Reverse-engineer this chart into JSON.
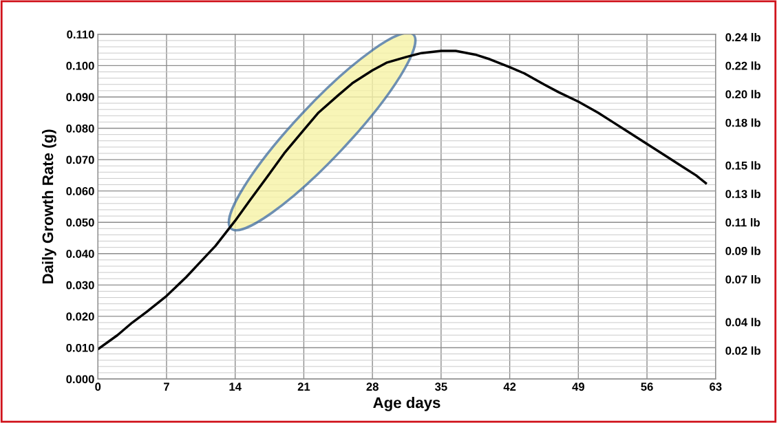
{
  "chart_data": {
    "type": "line",
    "xlabel": "Age days",
    "ylabel": "Daily Growth Rate (g)",
    "x": [
      0,
      2,
      3.5,
      5,
      7,
      9,
      10.5,
      12,
      13,
      14,
      15.5,
      17.5,
      19,
      21,
      22.5,
      24.5,
      26,
      28,
      29.5,
      31.5,
      33,
      35,
      36.5,
      38.5,
      40,
      42,
      43.5,
      45.5,
      47,
      49,
      51,
      52.5,
      54,
      56,
      58,
      59.5,
      61,
      62
    ],
    "series": [
      {
        "color": "#000000",
        "values": [
          0.0095,
          0.014,
          0.018,
          0.0215,
          0.0265,
          0.0325,
          0.0375,
          0.0425,
          0.0465,
          0.0505,
          0.057,
          0.0655,
          0.072,
          0.0795,
          0.085,
          0.0905,
          0.0945,
          0.0985,
          0.101,
          0.1028,
          0.104,
          0.1047,
          0.1047,
          0.1035,
          0.102,
          0.0995,
          0.0975,
          0.094,
          0.0915,
          0.0885,
          0.085,
          0.082,
          0.079,
          0.075,
          0.071,
          0.068,
          0.065,
          0.0625
        ]
      }
    ],
    "xlim": [
      0,
      63
    ],
    "ylim": [
      0,
      0.11
    ],
    "xticks": [
      0,
      7,
      14,
      21,
      28,
      35,
      42,
      49,
      56,
      63
    ],
    "yticks": [
      {
        "value": 0,
        "label": "0.000"
      },
      {
        "value": 0.01,
        "label": "0.010"
      },
      {
        "value": 0.02,
        "label": "0.020"
      },
      {
        "value": 0.03,
        "label": "0.030"
      },
      {
        "value": 0.04,
        "label": "0.040"
      },
      {
        "value": 0.05,
        "label": "0.050"
      },
      {
        "value": 0.06,
        "label": "0.060"
      },
      {
        "value": 0.07,
        "label": "0.070"
      },
      {
        "value": 0.08,
        "label": "0.080"
      },
      {
        "value": 0.09,
        "label": "0.090"
      },
      {
        "value": 0.1,
        "label": "0.100"
      },
      {
        "value": 0.11,
        "label": "0.110"
      }
    ],
    "y2lim": [
      0,
      0.242
    ],
    "y2ticks": [
      {
        "value": 0.02,
        "label": "0.02 lb"
      },
      {
        "value": 0.04,
        "label": "0.04 lb"
      },
      {
        "value": 0.07,
        "label": "0.07 lb"
      },
      {
        "value": 0.09,
        "label": "0.09 lb"
      },
      {
        "value": 0.11,
        "label": "0.11 lb"
      },
      {
        "value": 0.13,
        "label": "0.13 lb"
      },
      {
        "value": 0.15,
        "label": "0.15 lb"
      },
      {
        "value": 0.18,
        "label": "0.18 lb"
      },
      {
        "value": 0.2,
        "label": "0.20 lb"
      },
      {
        "value": 0.22,
        "label": "0.22 lb"
      },
      {
        "value": 0.24,
        "label": "0.24 lb"
      }
    ],
    "grid": true,
    "marker": "none",
    "line_style": "solid"
  }
}
